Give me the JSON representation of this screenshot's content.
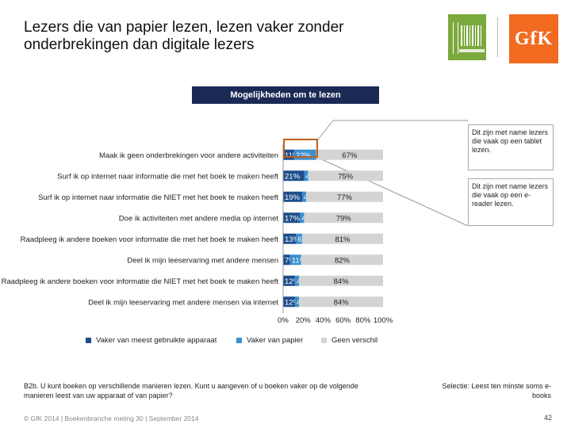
{
  "header": {
    "title": "Lezers die van papier lezen, lezen vaker zonder onderbrekingen dan digitale lezers"
  },
  "banner": "Mogelijkheden om te lezen",
  "callouts": [
    "Dit zijn met name lezers die vaak op een tablet lezen.",
    "Dit zijn met name lezers die vaak op een e-reader lezen."
  ],
  "colors": {
    "series1": "#1f4e8c",
    "series2": "#3a8fd0",
    "series3": "#d4d4d4",
    "banner": "#1a2a55",
    "highlight": "#c0601a",
    "gfk": "#f26b21",
    "cbpb": "#7aa93c"
  },
  "chart_data": {
    "type": "bar",
    "orientation": "horizontal",
    "stacked": true,
    "categories": [
      "Maak ik geen onderbrekingen voor andere activiteiten",
      "Surf ik op internet naar informatie die met het boek te maken heeft",
      "Surf ik op internet naar informatie die NIET met het boek te maken heeft",
      "Doe ik activiteiten met andere media op internet",
      "Raadpleeg ik andere boeken voor informatie die met het boek te maken heeft",
      "Deel ik mijn leeservaring met andere mensen",
      "Raadpleeg ik andere boeken voor informatie die NIET met het boek te maken heeft",
      "Deel ik mijn leeservaring met andere mensen via internet"
    ],
    "series": [
      {
        "name": "Vaker van meest gebruikte apparaat",
        "values": [
          11,
          21,
          19,
          17,
          13,
          7,
          12,
          12
        ],
        "labels": [
          "11%",
          "21%",
          "19%",
          "17%",
          "13%",
          "7%",
          "12%",
          "12%"
        ]
      },
      {
        "name": "Vaker van papier",
        "values": [
          22,
          4,
          4,
          4,
          6,
          11,
          4,
          4
        ],
        "labels": [
          "22%",
          "4%",
          "4%",
          "4%",
          "6%",
          "11%",
          "4%",
          "4%"
        ]
      },
      {
        "name": "Geen verschil",
        "values": [
          67,
          75,
          77,
          79,
          81,
          82,
          84,
          84
        ],
        "labels": [
          "67%",
          "75%",
          "77%",
          "79%",
          "81%",
          "82%",
          "84%",
          "84%"
        ]
      }
    ],
    "xlim": [
      0,
      100
    ],
    "xticks": [
      "0%",
      "20%",
      "40%",
      "60%",
      "80%",
      "100%"
    ],
    "legend_position": "bottom"
  },
  "notes": {
    "question": "B2b. U kunt boeken op verschillende manieren lezen. Kunt u aangeven of u boeken vaker op de volgende manieren leest van uw apparaat of van papier?",
    "selection": "Selectie: Leest ten minste soms e-books"
  },
  "footer": "© GfK 2014 | Boekenbranche meting 30 | September 2014",
  "page_number": "42"
}
